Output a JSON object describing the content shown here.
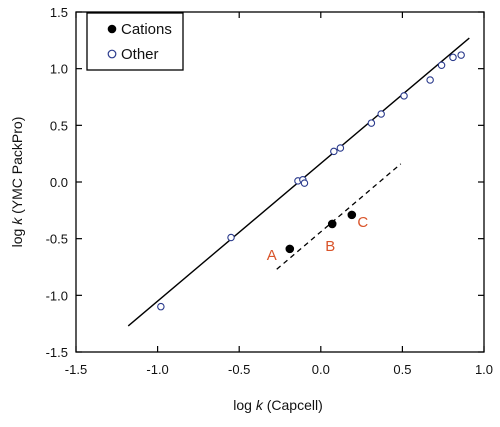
{
  "chart_data": {
    "type": "scatter",
    "xlabel": {
      "prefix": "log ",
      "italic": "k",
      "suffix": " (Capcell)"
    },
    "ylabel": {
      "prefix": "log ",
      "italic": "k",
      "suffix": " (YMC PackPro)"
    },
    "xlim": [
      -1.5,
      1.0
    ],
    "ylim": [
      -1.5,
      1.5
    ],
    "x_ticks": [
      -1.5,
      -1.0,
      -0.5,
      0.0,
      0.5,
      1.0
    ],
    "x_tick_labels": [
      "-1.5",
      "-1.0",
      "-0.5",
      "0.0",
      "0.5",
      "1.0"
    ],
    "y_ticks": [
      -1.5,
      -1.0,
      -0.5,
      0.0,
      0.5,
      1.0,
      1.5
    ],
    "y_tick_labels": [
      "-1.5",
      "-1.0",
      "-0.5",
      "0.0",
      "0.5",
      "1.0",
      "1.5"
    ],
    "grid": false,
    "legend_position": "top-left",
    "series": [
      {
        "name": "Cations",
        "marker": "filled-circle",
        "color": "#000000",
        "points": [
          {
            "x": -0.19,
            "y": -0.59,
            "label": "A"
          },
          {
            "x": 0.07,
            "y": -0.37,
            "label": "B"
          },
          {
            "x": 0.19,
            "y": -0.29,
            "label": "C"
          }
        ]
      },
      {
        "name": "Other",
        "marker": "open-circle",
        "color": "#2a3a8c",
        "points": [
          {
            "x": -0.98,
            "y": -1.1
          },
          {
            "x": -0.55,
            "y": -0.49
          },
          {
            "x": -0.14,
            "y": 0.01
          },
          {
            "x": -0.11,
            "y": 0.02
          },
          {
            "x": -0.1,
            "y": -0.01
          },
          {
            "x": 0.08,
            "y": 0.27
          },
          {
            "x": 0.12,
            "y": 0.3
          },
          {
            "x": 0.31,
            "y": 0.52
          },
          {
            "x": 0.37,
            "y": 0.6
          },
          {
            "x": 0.51,
            "y": 0.76
          },
          {
            "x": 0.67,
            "y": 0.9
          },
          {
            "x": 0.74,
            "y": 1.03
          },
          {
            "x": 0.81,
            "y": 1.1
          },
          {
            "x": 0.86,
            "y": 1.12
          }
        ]
      }
    ],
    "fit_lines": [
      {
        "style": "solid",
        "color": "#000000",
        "x": [
          -1.18,
          0.91
        ],
        "y": [
          -1.27,
          1.27
        ]
      },
      {
        "style": "dashed",
        "color": "#000000",
        "x": [
          -0.27,
          0.49
        ],
        "y": [
          -0.77,
          0.16
        ]
      }
    ],
    "annotation_color": "#d9542a"
  }
}
